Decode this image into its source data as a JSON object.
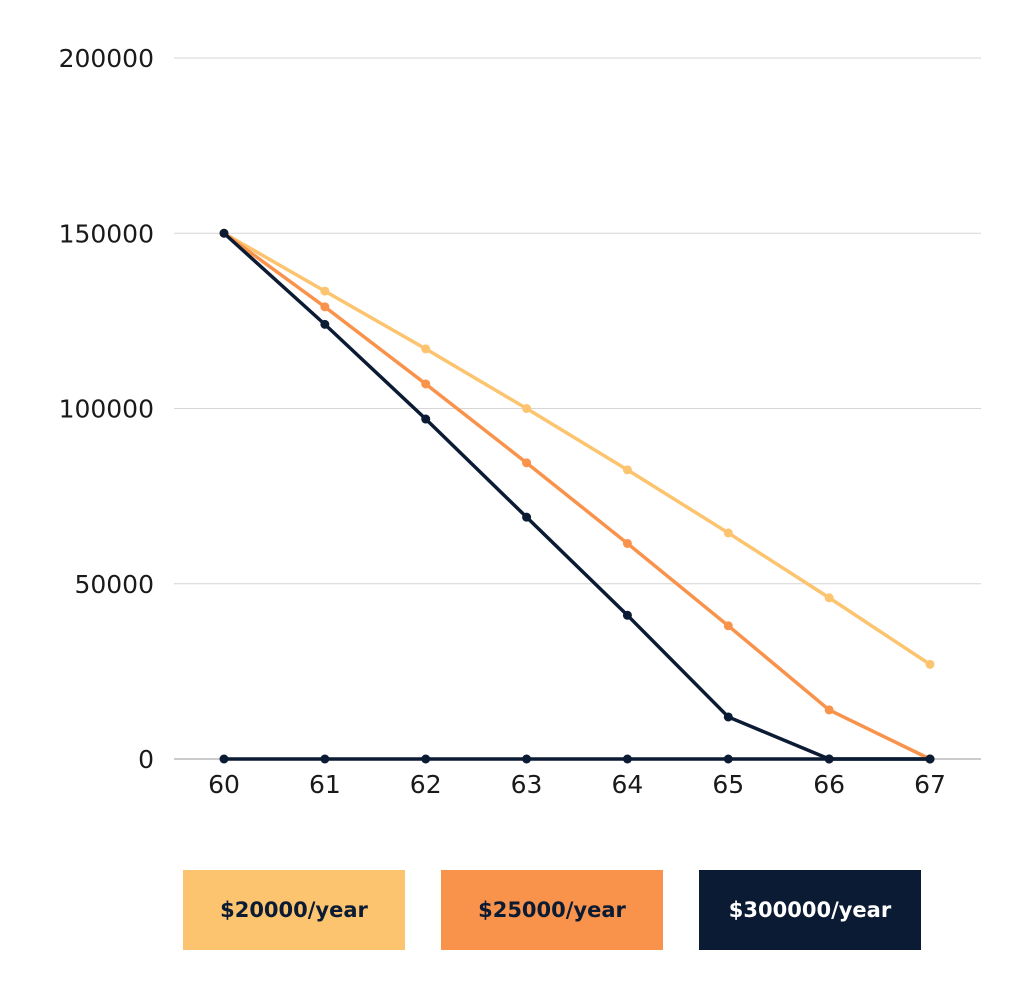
{
  "chart_data": {
    "type": "line",
    "title": "",
    "xlabel": "",
    "ylabel": "",
    "x": [
      60,
      61,
      62,
      63,
      64,
      65,
      66,
      67
    ],
    "x_tick_labels": [
      "60",
      "61",
      "62",
      "63",
      "64",
      "65",
      "66",
      "67"
    ],
    "y_tick_labels": [
      "200000",
      "150000",
      "100000",
      "50000",
      "0"
    ],
    "y_ticks": [
      200000,
      150000,
      100000,
      50000,
      0
    ],
    "ylim": [
      0,
      200000
    ],
    "grid": "horizontal",
    "legend_position": "bottom",
    "series": [
      {
        "name": "$20000/year",
        "color": "#fcc46e",
        "text_color": "#0b1b33",
        "values": [
          150000,
          133500,
          117000,
          100000,
          82500,
          64500,
          46000,
          27000
        ]
      },
      {
        "name": "$25000/year",
        "color": "#f9924b",
        "text_color": "#0b1b33",
        "values": [
          150000,
          129000,
          107000,
          84500,
          61500,
          38000,
          14000,
          0
        ]
      },
      {
        "name": "$300000/year",
        "color": "#0b1b33",
        "text_color": "#ffffff",
        "values": [
          150000,
          124000,
          97000,
          69000,
          41000,
          12000,
          0,
          0
        ]
      },
      {
        "name": "",
        "color": "#0b1b33",
        "values": [
          0,
          0,
          0,
          0,
          0,
          0,
          0,
          0
        ]
      }
    ]
  }
}
